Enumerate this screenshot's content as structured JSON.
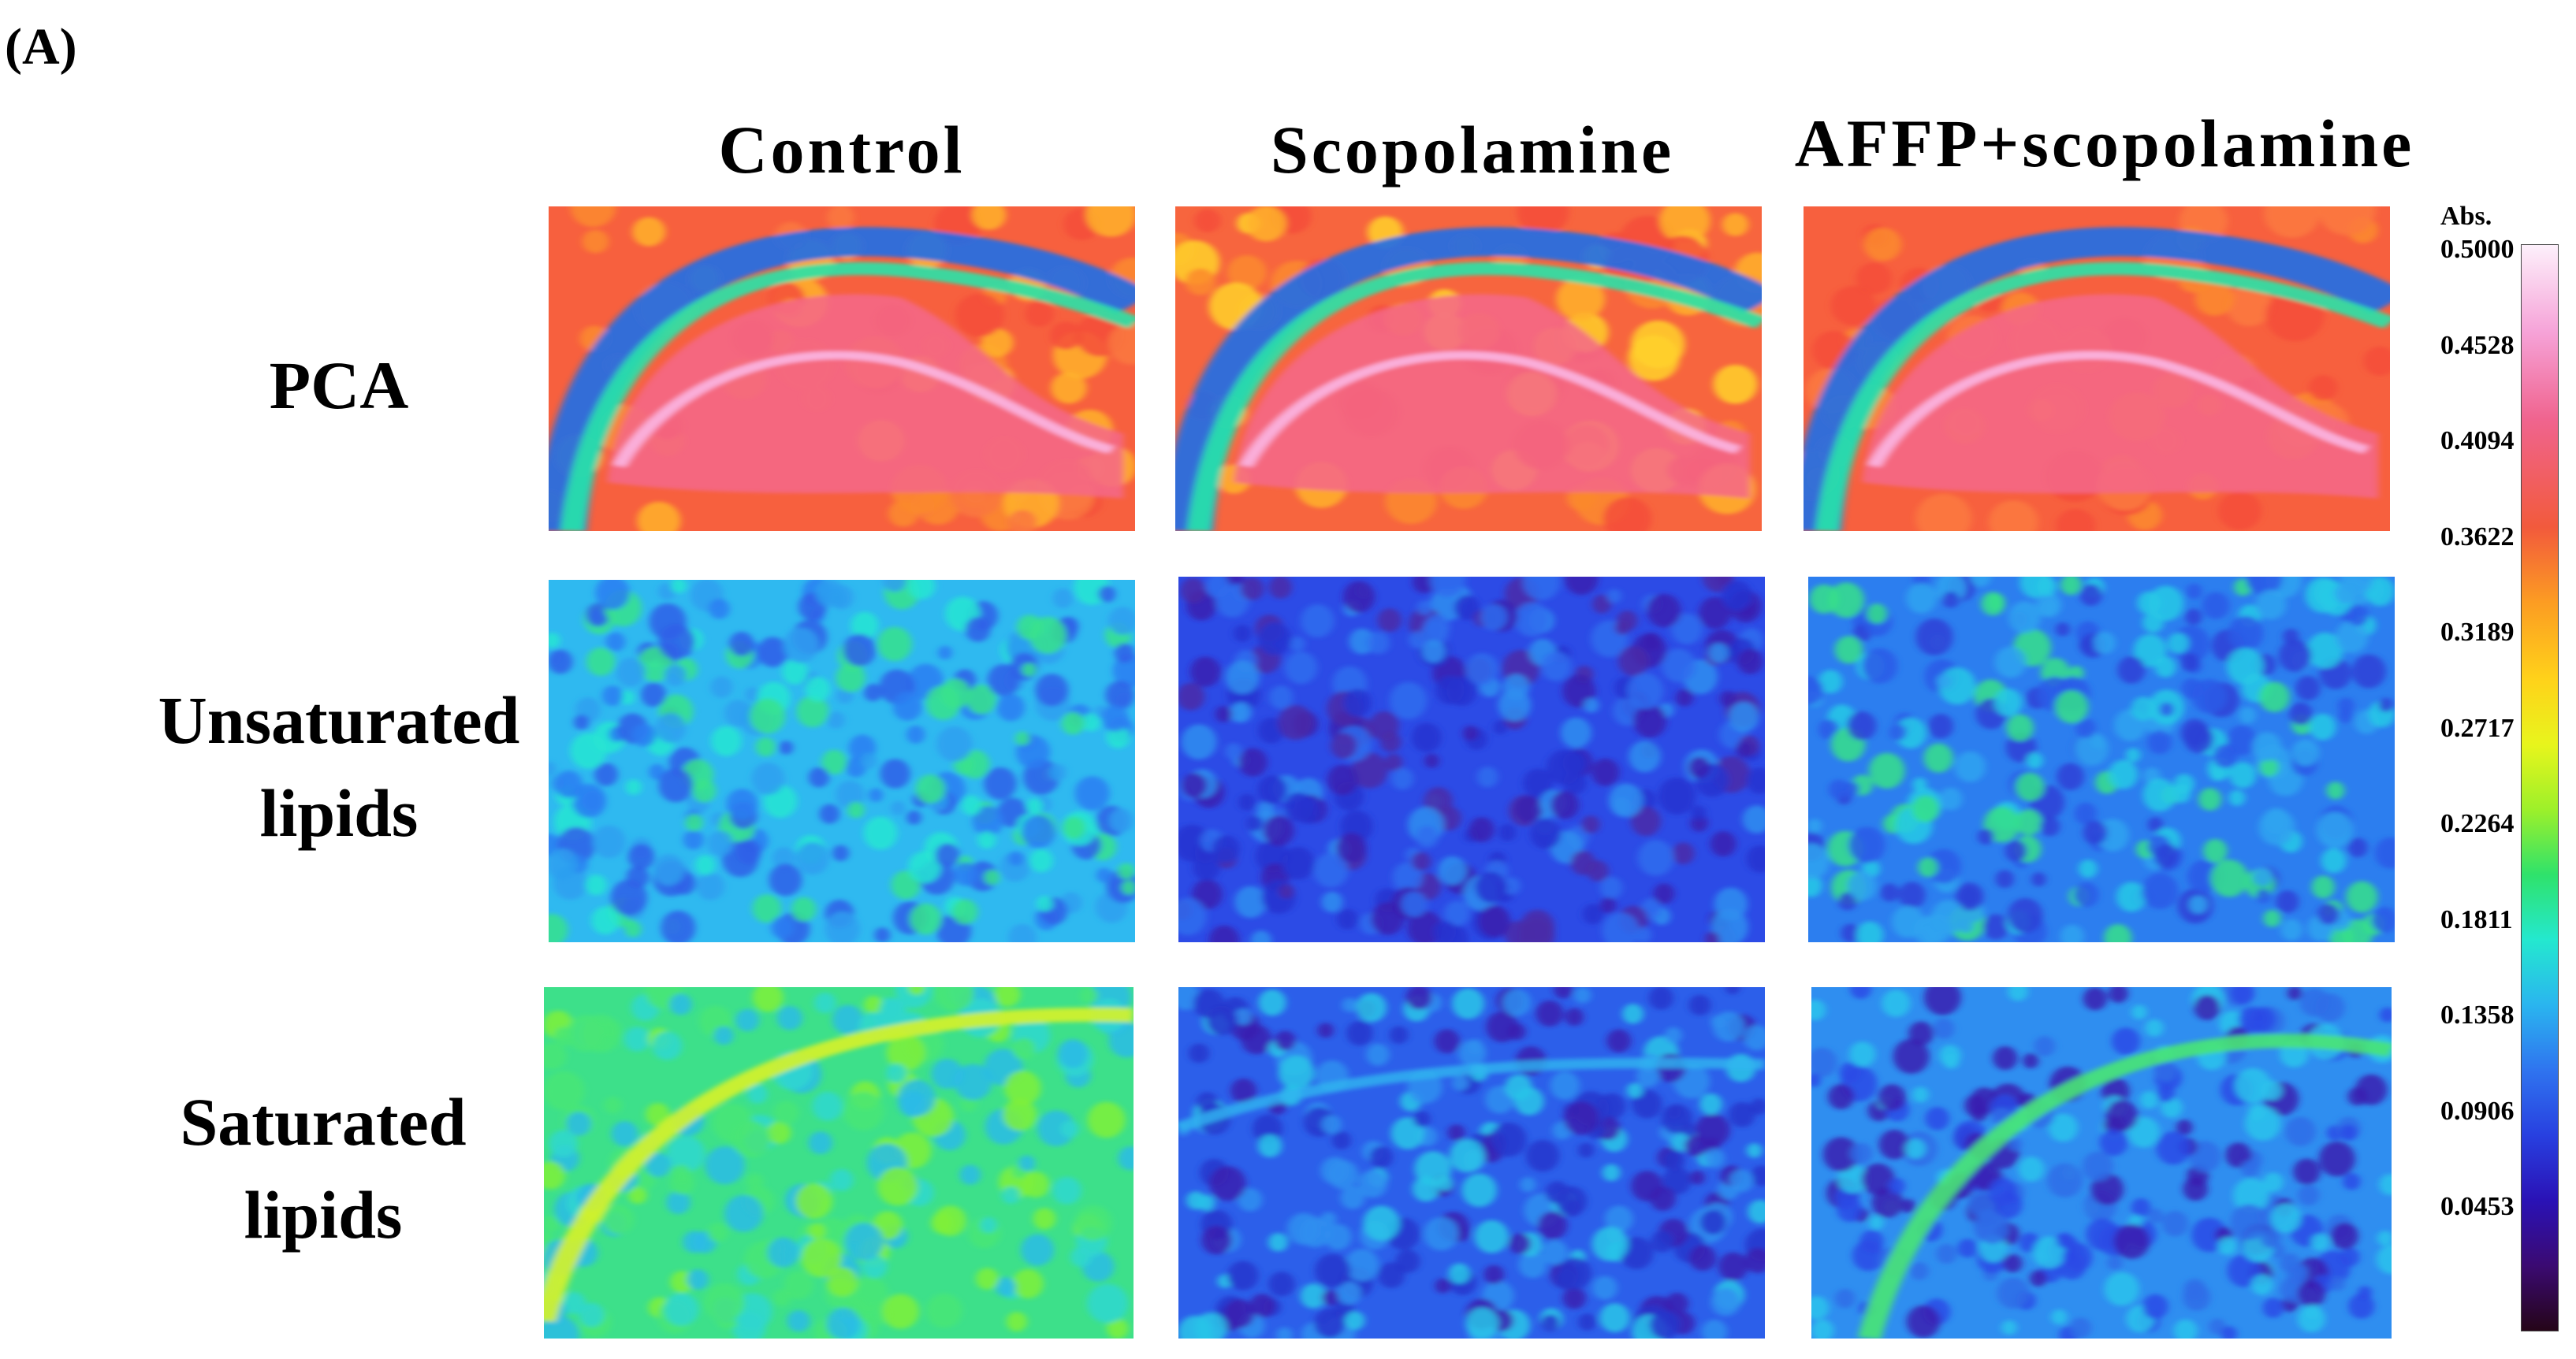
{
  "panel_label": "(A)",
  "columns": [
    "Control",
    "Scopolamine",
    "AFFP+scopolamine"
  ],
  "rows": [
    {
      "line1": "PCA",
      "line2": ""
    },
    {
      "line1": "Unsaturated",
      "line2": "lipids"
    },
    {
      "line1": "Saturated",
      "line2": "lipids"
    }
  ],
  "colorbar": {
    "title": "Abs.",
    "ticks": [
      "0.5000",
      "0.4528",
      "0.4094",
      "0.3622",
      "0.3189",
      "0.2717",
      "0.2264",
      "0.1811",
      "0.1358",
      "0.0906",
      "0.0453"
    ]
  }
}
